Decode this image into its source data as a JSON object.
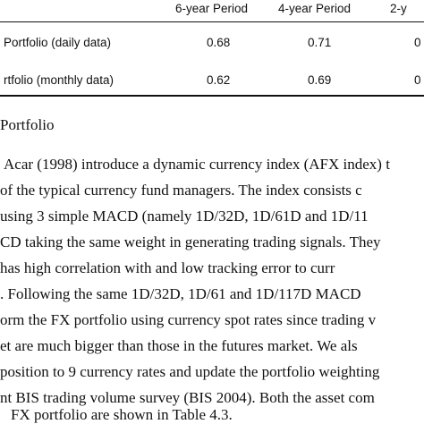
{
  "table": {
    "headers": [
      "6-year Period",
      "4-year Period",
      "2-y"
    ],
    "rows": [
      {
        "label": "Portfolio (daily data)",
        "values": [
          "0.68",
          "0.71",
          "0"
        ]
      },
      {
        "label": "rtfolio (monthly data)",
        "values": [
          "0.62",
          "0.69",
          "0"
        ]
      }
    ]
  },
  "section_heading": "Portfolio",
  "paragraph_lines": [
    "Acar (1998) introduce a dynamic currency index (AFX index) t",
    "of the typical currency fund managers. The index consists c",
    "using 3 simple MACD (namely 1D/32D, 1D/61D and 1D/11",
    "CD taking the same weight in generating trading signals. They",
    "has high correlation with and low tracking error to curr",
    ". Following the same 1D/32D, 1D/61 and 1D/117D MACD",
    "orm the FX portfolio using currency spot rates since trading v",
    "et are much bigger than those in the futures market. We als",
    "position to 9 currency rates and update the portfolio weighting",
    "nt BIS trading volume survey (BIS 2004). Both the asset com",
    "FX portfolio are shown in Table 4.3."
  ]
}
